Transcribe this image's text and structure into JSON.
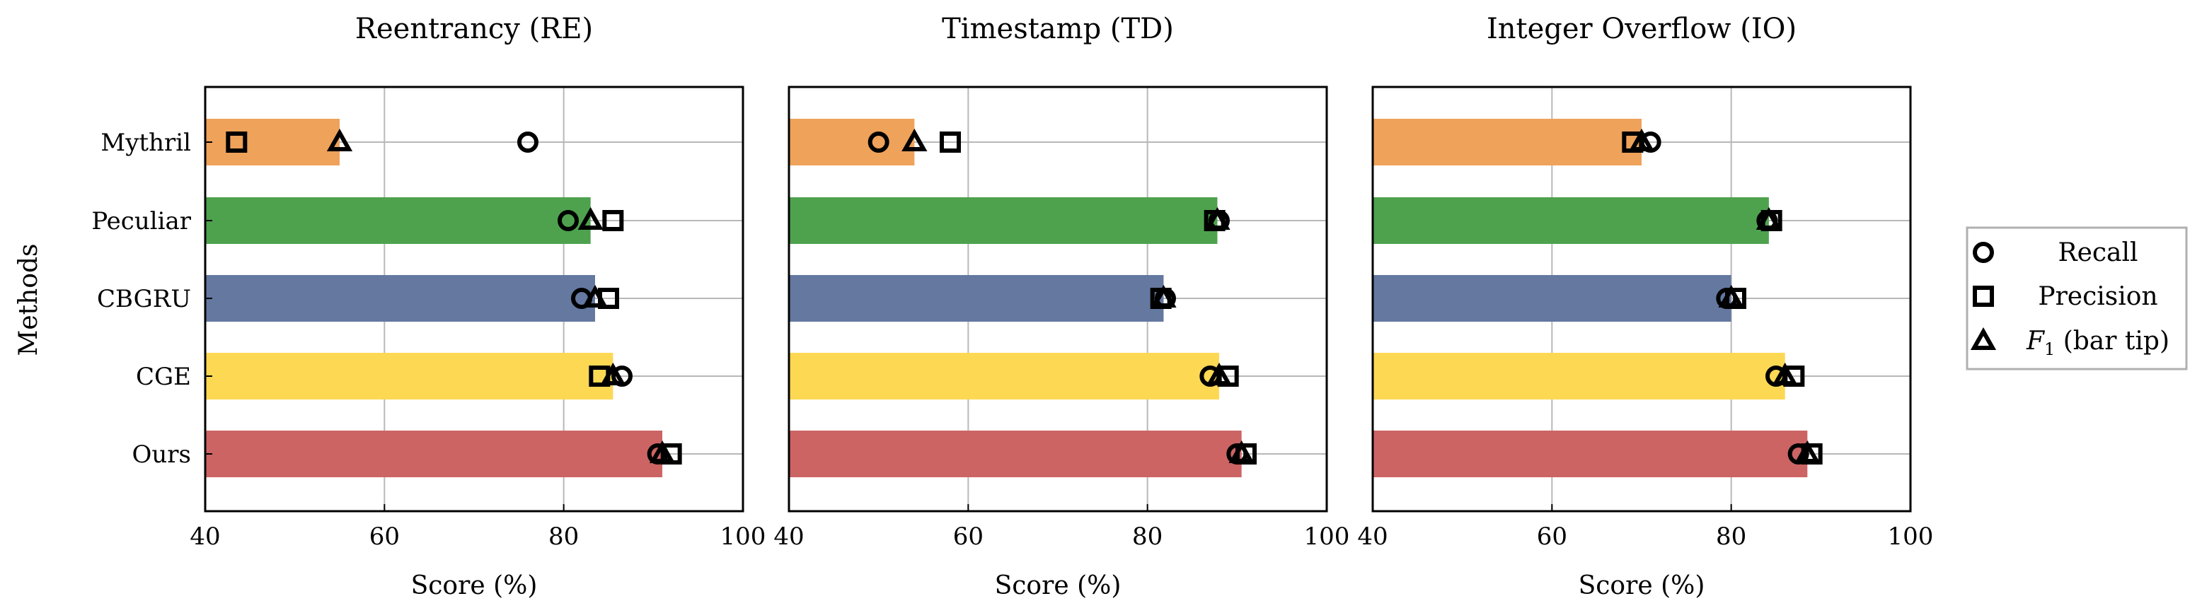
{
  "chart_data": {
    "type": "bar",
    "orientation": "horizontal",
    "ylabel": "Methods",
    "methods": [
      "Mythril",
      "Peculiar",
      "CBGRU",
      "CGE",
      "Ours"
    ],
    "colors": {
      "Mythril": "#efa25a",
      "Peculiar": "#4ea24e",
      "CBGRU": "#6478a0",
      "CGE": "#fdd853",
      "Ours": "#cc6464"
    },
    "legend": {
      "position": "right",
      "entries": [
        {
          "marker": "circle",
          "label": "Recall"
        },
        {
          "marker": "square",
          "label": "Precision"
        },
        {
          "marker": "triangle",
          "label": "F",
          "sub": "1",
          "suffix": " (bar tip)"
        }
      ]
    },
    "panels": [
      {
        "title": "Reentrancy (RE)",
        "xlabel": "Score (%)",
        "xlim": [
          40,
          100
        ],
        "xticks": [
          40,
          60,
          80,
          100
        ],
        "grid": true,
        "series": [
          {
            "name": "Recall",
            "marker": "circle",
            "values": [
              76.0,
              80.5,
              82.0,
              86.5,
              90.5
            ]
          },
          {
            "name": "Precision",
            "marker": "square",
            "values": [
              43.5,
              85.5,
              85.0,
              84.0,
              92.0
            ]
          },
          {
            "name": "F1",
            "marker": "triangle",
            "values": [
              55.0,
              83.0,
              83.5,
              85.5,
              91.0
            ]
          }
        ]
      },
      {
        "title": "Timestamp (TD)",
        "xlabel": "Score (%)",
        "xlim": [
          40,
          100
        ],
        "xticks": [
          40,
          60,
          80,
          100
        ],
        "grid": true,
        "series": [
          {
            "name": "Recall",
            "marker": "circle",
            "values": [
              50.0,
              88.0,
              82.0,
              87.0,
              90.0
            ]
          },
          {
            "name": "Precision",
            "marker": "square",
            "values": [
              58.0,
              87.5,
              81.5,
              89.0,
              91.0
            ]
          },
          {
            "name": "F1",
            "marker": "triangle",
            "values": [
              54.0,
              87.8,
              81.8,
              88.0,
              90.5
            ]
          }
        ]
      },
      {
        "title": "Integer Overflow (IO)",
        "xlabel": "Score (%)",
        "xlim": [
          40,
          100
        ],
        "xticks": [
          40,
          60,
          80,
          100
        ],
        "grid": true,
        "series": [
          {
            "name": "Recall",
            "marker": "circle",
            "values": [
              71.0,
              84.0,
              79.5,
              85.0,
              87.5
            ]
          },
          {
            "name": "Precision",
            "marker": "square",
            "values": [
              69.0,
              84.5,
              80.5,
              87.0,
              89.0
            ]
          },
          {
            "name": "F1",
            "marker": "triangle",
            "values": [
              70.0,
              84.2,
              80.0,
              86.0,
              88.5
            ]
          }
        ]
      }
    ]
  }
}
